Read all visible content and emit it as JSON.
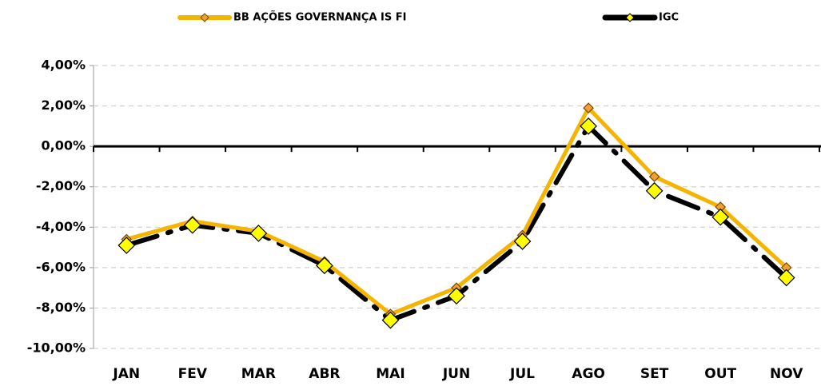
{
  "chart_data": {
    "type": "line",
    "categories": [
      "JAN",
      "FEV",
      "MAR",
      "ABR",
      "MAI",
      "JUN",
      "JUL",
      "AGO",
      "SET",
      "OUT",
      "NOV"
    ],
    "series": [
      {
        "name": "BB AÇÕES GOVERNANÇA IS FI",
        "color": "#f5b400",
        "marker_color": "#f0a030",
        "values": [
          -4.6,
          -3.7,
          -4.2,
          -5.7,
          -8.3,
          -7.0,
          -4.4,
          1.9,
          -1.5,
          -3.0,
          -6.0
        ]
      },
      {
        "name": "IGC",
        "color": "#000000",
        "marker_color": "#ffff00",
        "values": [
          -4.9,
          -3.9,
          -4.3,
          -5.9,
          -8.6,
          -7.4,
          -4.7,
          1.0,
          -2.2,
          -3.5,
          -6.5
        ]
      }
    ],
    "ylim": [
      -10,
      4
    ],
    "yticks": [
      {
        "value": -10,
        "label": "-10,00%"
      },
      {
        "value": -8,
        "label": "-8,00%"
      },
      {
        "value": -6,
        "label": "-6,00%"
      },
      {
        "value": -4,
        "label": "-4,00%"
      },
      {
        "value": -2,
        "label": "-2,00%"
      },
      {
        "value": 0,
        "label": "0,00%"
      },
      {
        "value": 2,
        "label": "2,00%"
      },
      {
        "value": 4,
        "label": "4,00%"
      }
    ],
    "grid": true,
    "legend": "top"
  }
}
